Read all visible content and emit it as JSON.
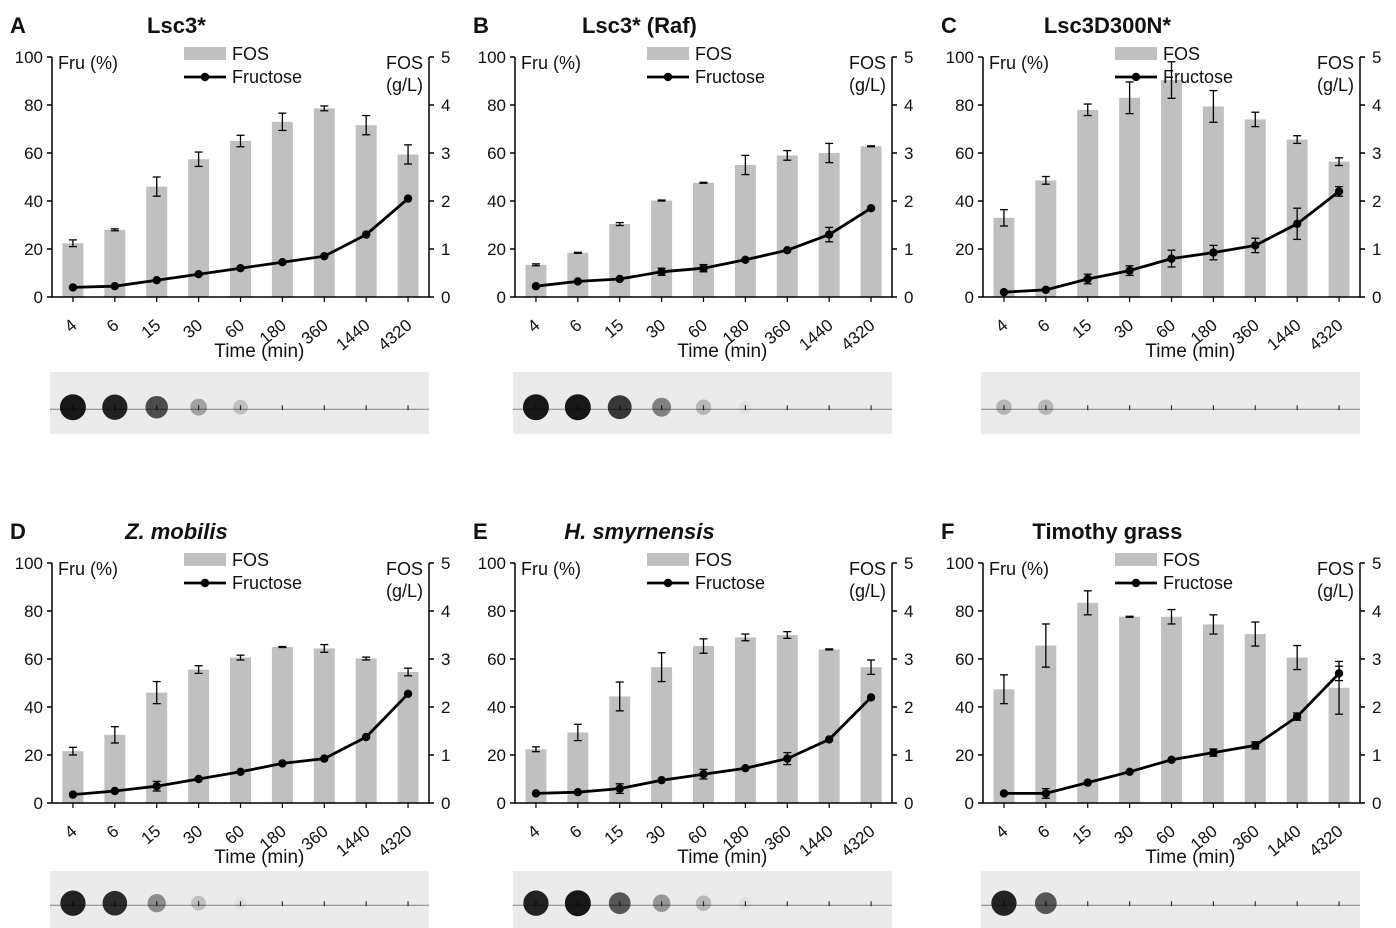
{
  "figure": {
    "x_axis_label": "Time (min)",
    "left_axis_label": "Fru (%)",
    "right_axis_label_line1": "FOS",
    "right_axis_label_line2": "(g/L)",
    "legend": {
      "bar_label": "FOS",
      "line_label": "Fructose"
    },
    "colors": {
      "bar": "#c0c0c0",
      "line": "#000000",
      "axis": "#000000"
    }
  },
  "chart_data": [
    {
      "panel": "A",
      "title": "Lsc3*",
      "italic": false,
      "type": "bar+line",
      "categories": [
        "4",
        "6",
        "15",
        "30",
        "60",
        "180",
        "360",
        "1440",
        "4320"
      ],
      "yleft_lim": [
        0,
        100
      ],
      "yleft_ticks": [
        0,
        20,
        40,
        60,
        80,
        100
      ],
      "yright_lim": [
        0,
        5
      ],
      "yright_ticks": [
        0,
        1,
        2,
        3,
        4,
        5
      ],
      "series": [
        {
          "name": "FOS",
          "axis": "right",
          "kind": "bar",
          "values": [
            1.12,
            1.4,
            2.3,
            2.87,
            3.25,
            3.65,
            3.93,
            3.58,
            2.97
          ],
          "errors": [
            0.07,
            0.02,
            0.2,
            0.15,
            0.12,
            0.18,
            0.05,
            0.2,
            0.2
          ]
        },
        {
          "name": "Fructose",
          "axis": "left",
          "kind": "line",
          "values": [
            4,
            4.5,
            7,
            9.5,
            12,
            14.5,
            17,
            26,
            41
          ],
          "errors": [
            0,
            0,
            0,
            0,
            0,
            0,
            0,
            0,
            0
          ]
        }
      ]
    },
    {
      "panel": "B",
      "title": "Lsc3* (Raf)",
      "italic": false,
      "type": "bar+line",
      "categories": [
        "4",
        "6",
        "15",
        "30",
        "60",
        "180",
        "360",
        "1440",
        "4320"
      ],
      "yleft_lim": [
        0,
        100
      ],
      "yleft_ticks": [
        0,
        20,
        40,
        60,
        80,
        100
      ],
      "yright_lim": [
        0,
        5
      ],
      "yright_ticks": [
        0,
        1,
        2,
        3,
        4,
        5
      ],
      "series": [
        {
          "name": "FOS",
          "axis": "right",
          "kind": "bar",
          "values": [
            0.67,
            0.92,
            1.52,
            2.01,
            2.38,
            2.75,
            2.95,
            3.0,
            3.14
          ],
          "errors": [
            0.02,
            0.01,
            0.03,
            0.01,
            0.01,
            0.2,
            0.1,
            0.2,
            0.01
          ]
        },
        {
          "name": "Fructose",
          "axis": "left",
          "kind": "line",
          "values": [
            4.5,
            6.5,
            7.5,
            10.5,
            12,
            15.5,
            19.5,
            26,
            37
          ],
          "errors": [
            0,
            0,
            0,
            1.5,
            1.5,
            0,
            0,
            3,
            0
          ]
        }
      ]
    },
    {
      "panel": "C",
      "title": "Lsc3D300N*",
      "italic": false,
      "type": "bar+line",
      "categories": [
        "4",
        "6",
        "15",
        "30",
        "60",
        "180",
        "360",
        "1440",
        "4320"
      ],
      "yleft_lim": [
        0,
        100
      ],
      "yleft_ticks": [
        0,
        20,
        40,
        60,
        80,
        100
      ],
      "yright_lim": [
        0,
        5
      ],
      "yright_ticks": [
        0,
        1,
        2,
        3,
        4,
        5
      ],
      "series": [
        {
          "name": "FOS",
          "axis": "right",
          "kind": "bar",
          "values": [
            1.65,
            2.43,
            3.9,
            4.15,
            4.52,
            3.97,
            3.7,
            3.28,
            2.82
          ],
          "errors": [
            0.17,
            0.08,
            0.12,
            0.33,
            0.38,
            0.33,
            0.15,
            0.08,
            0.08
          ]
        },
        {
          "name": "Fructose",
          "axis": "left",
          "kind": "line",
          "values": [
            2,
            3,
            7.5,
            11,
            16,
            18.5,
            21.5,
            30.5,
            44
          ],
          "errors": [
            0,
            0,
            2,
            2,
            3.5,
            3,
            3,
            6.5,
            2
          ]
        }
      ]
    },
    {
      "panel": "D",
      "title": "Z. mobilis",
      "italic": true,
      "type": "bar+line",
      "categories": [
        "4",
        "6",
        "15",
        "30",
        "60",
        "180",
        "360",
        "1440",
        "4320"
      ],
      "yleft_lim": [
        0,
        100
      ],
      "yleft_ticks": [
        0,
        20,
        40,
        60,
        80,
        100
      ],
      "yright_lim": [
        0,
        5
      ],
      "yright_ticks": [
        0,
        1,
        2,
        3,
        4,
        5
      ],
      "series": [
        {
          "name": "FOS",
          "axis": "right",
          "kind": "bar",
          "values": [
            1.08,
            1.42,
            2.3,
            2.78,
            3.03,
            3.25,
            3.22,
            3.01,
            2.73
          ],
          "errors": [
            0.08,
            0.17,
            0.23,
            0.08,
            0.05,
            0.01,
            0.08,
            0.03,
            0.08
          ]
        },
        {
          "name": "Fructose",
          "axis": "left",
          "kind": "line",
          "values": [
            3.5,
            5,
            7,
            10,
            13,
            16.5,
            18.5,
            27.5,
            45.5
          ],
          "errors": [
            0,
            0,
            2,
            0,
            0,
            0,
            0,
            0,
            0
          ]
        }
      ]
    },
    {
      "panel": "E",
      "title": "H. smyrnensis",
      "italic": true,
      "type": "bar+line",
      "categories": [
        "4",
        "6",
        "15",
        "30",
        "60",
        "180",
        "360",
        "1440",
        "4320"
      ],
      "yleft_lim": [
        0,
        100
      ],
      "yleft_ticks": [
        0,
        20,
        40,
        60,
        80,
        100
      ],
      "yright_lim": [
        0,
        5
      ],
      "yright_ticks": [
        0,
        1,
        2,
        3,
        4,
        5
      ],
      "series": [
        {
          "name": "FOS",
          "axis": "right",
          "kind": "bar",
          "values": [
            1.12,
            1.47,
            2.22,
            2.83,
            3.27,
            3.45,
            3.5,
            3.2,
            2.83
          ],
          "errors": [
            0.05,
            0.17,
            0.3,
            0.3,
            0.15,
            0.07,
            0.07,
            0.01,
            0.15
          ]
        },
        {
          "name": "Fructose",
          "axis": "left",
          "kind": "line",
          "values": [
            4,
            4.5,
            6,
            9.5,
            12,
            14.5,
            18.5,
            26.5,
            44
          ],
          "errors": [
            0,
            0,
            2,
            0,
            2,
            0,
            2.5,
            0,
            0
          ]
        }
      ]
    },
    {
      "panel": "F",
      "title": "Timothy grass",
      "italic": false,
      "type": "bar+line",
      "categories": [
        "4",
        "6",
        "15",
        "30",
        "60",
        "180",
        "360",
        "1440",
        "4320"
      ],
      "yleft_lim": [
        0,
        100
      ],
      "yleft_ticks": [
        0,
        20,
        40,
        60,
        80,
        100
      ],
      "yright_lim": [
        0,
        5
      ],
      "yright_ticks": [
        0,
        1,
        2,
        3,
        4,
        5
      ],
      "series": [
        {
          "name": "FOS",
          "axis": "right",
          "kind": "bar",
          "values": [
            2.37,
            3.28,
            4.17,
            3.88,
            3.88,
            3.72,
            3.52,
            3.03,
            2.4
          ],
          "errors": [
            0.3,
            0.45,
            0.25,
            0.01,
            0.15,
            0.2,
            0.25,
            0.25,
            0.55
          ]
        },
        {
          "name": "Fructose",
          "axis": "left",
          "kind": "line",
          "values": [
            4,
            4,
            8.5,
            13,
            18,
            21,
            24,
            36,
            54
          ],
          "errors": [
            0,
            2,
            0,
            0,
            0,
            1.5,
            1.5,
            1.5,
            3
          ]
        }
      ]
    }
  ],
  "tlc_strips": [
    {
      "panel": "A",
      "spots": [
        1.0,
        0.95,
        0.75,
        0.35,
        0.2,
        0,
        0,
        0,
        0
      ]
    },
    {
      "panel": "B",
      "spots": [
        1.0,
        1.0,
        0.85,
        0.5,
        0.25,
        0.05,
        0,
        0,
        0
      ]
    },
    {
      "panel": "C",
      "spots": [
        0.25,
        0.25,
        0,
        0,
        0,
        0,
        0,
        0,
        0
      ]
    },
    {
      "panel": "D",
      "spots": [
        0.95,
        0.9,
        0.45,
        0.2,
        0.05,
        0,
        0,
        0,
        0
      ]
    },
    {
      "panel": "E",
      "spots": [
        0.95,
        1.0,
        0.7,
        0.4,
        0.25,
        0.05,
        0,
        0,
        0
      ]
    },
    {
      "panel": "F",
      "spots": [
        0.95,
        0.7,
        0,
        0,
        0,
        0,
        0,
        0,
        0
      ]
    }
  ]
}
